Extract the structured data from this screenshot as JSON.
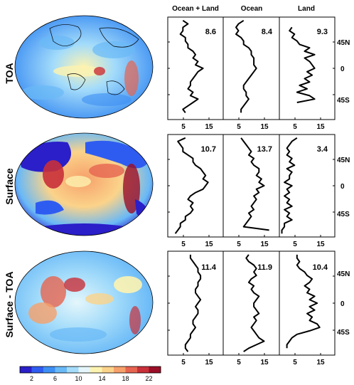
{
  "chart_data": {
    "type": "line",
    "columns": [
      "Ocean + Land",
      "Ocean",
      "Land"
    ],
    "rows": [
      "TOA",
      "Surface",
      "Surface - TOA"
    ],
    "x_ticks": [
      "5",
      "15"
    ],
    "xlim": [
      0,
      22
    ],
    "y_ticks": [
      "45N",
      "0",
      "45S"
    ],
    "ylim": [
      -75,
      75
    ],
    "colorbar": {
      "ticks": [
        "2",
        "6",
        "10",
        "14",
        "18",
        "22"
      ],
      "range": [
        0,
        24
      ],
      "colors": [
        "#2a1fc9",
        "#2f5cf0",
        "#3d8ff3",
        "#69b9f7",
        "#a4dcfa",
        "#e4f6fb",
        "#fdf3b0",
        "#fbd38a",
        "#f6a06a",
        "#e66450",
        "#c8303a",
        "#9b0e27"
      ]
    },
    "panels": [
      {
        "row": "TOA",
        "column": "Ocean + Land",
        "mean_label": "8.6",
        "lat": [
          70,
          65,
          60,
          55,
          50,
          45,
          40,
          35,
          30,
          25,
          20,
          15,
          10,
          5,
          0,
          -5,
          -10,
          -15,
          -20,
          -25,
          -30,
          -35,
          -40,
          -45,
          -50,
          -55,
          -60,
          -65
        ],
        "values": [
          6,
          8,
          6,
          6,
          5,
          7,
          7,
          8,
          8,
          10,
          11,
          10,
          12,
          11,
          14,
          12,
          11,
          10,
          9,
          9,
          8,
          10,
          9,
          12,
          10,
          8,
          6,
          7
        ]
      },
      {
        "row": "TOA",
        "column": "Ocean",
        "mean_label": "8.4",
        "lat": [
          70,
          65,
          60,
          55,
          50,
          45,
          40,
          35,
          30,
          25,
          20,
          15,
          10,
          5,
          0,
          -5,
          -10,
          -15,
          -20,
          -25,
          -30,
          -35,
          -40,
          -45,
          -50,
          -55,
          -60,
          -65
        ],
        "values": [
          8,
          6,
          5,
          6,
          5,
          7,
          8,
          8,
          10,
          11,
          11,
          12,
          12,
          12,
          13,
          12,
          11,
          10,
          9,
          8,
          8,
          9,
          9,
          10,
          9,
          8,
          7,
          7
        ]
      },
      {
        "row": "TOA",
        "column": "Land",
        "mean_label": "9.3",
        "lat": [
          60,
          55,
          50,
          45,
          40,
          35,
          30,
          25,
          20,
          15,
          10,
          5,
          0,
          -5,
          -10,
          -15,
          -20,
          -25,
          -30,
          -35,
          -40,
          -45,
          -50
        ],
        "values": [
          5,
          4,
          6,
          5,
          7,
          8,
          12,
          10,
          14,
          10,
          12,
          13,
          14,
          11,
          13,
          10,
          12,
          8,
          11,
          7,
          12,
          14,
          7
        ]
      },
      {
        "row": "Surface",
        "column": "Ocean + Land",
        "mean_label": "10.7",
        "lat": [
          70,
          65,
          60,
          55,
          50,
          45,
          40,
          35,
          30,
          25,
          20,
          15,
          10,
          5,
          0,
          -5,
          -10,
          -15,
          -20,
          -25,
          -30,
          -35,
          -40,
          -45,
          -50,
          -55,
          -60,
          -65,
          -70
        ],
        "values": [
          7,
          4,
          5,
          6,
          6,
          8,
          10,
          10,
          11,
          13,
          14,
          15,
          14,
          16,
          15,
          14,
          11,
          9,
          8,
          10,
          9,
          10,
          9,
          7,
          7,
          5,
          5,
          4,
          3
        ]
      },
      {
        "row": "Surface",
        "column": "Ocean",
        "mean_label": "13.7",
        "lat": [
          70,
          65,
          60,
          55,
          50,
          45,
          40,
          35,
          30,
          25,
          20,
          15,
          10,
          5,
          0,
          -5,
          -10,
          -15,
          -20,
          -25,
          -30,
          -35,
          -40,
          -45,
          -50,
          -55,
          -60,
          -62,
          -65
        ],
        "values": [
          7,
          8,
          9,
          10,
          11,
          10,
          12,
          11,
          12,
          14,
          14,
          13,
          15,
          14,
          16,
          13,
          14,
          12,
          13,
          12,
          11,
          12,
          10,
          11,
          10,
          9,
          8,
          12,
          18
        ]
      },
      {
        "row": "Surface",
        "column": "Land",
        "mean_label": "3.4",
        "lat": [
          70,
          65,
          60,
          55,
          50,
          45,
          40,
          35,
          30,
          25,
          20,
          15,
          10,
          5,
          0,
          -5,
          -10,
          -15,
          -20,
          -25,
          -30,
          -35,
          -40,
          -45,
          -50,
          -55,
          -60,
          -65,
          -70
        ],
        "values": [
          7,
          5,
          4,
          3,
          4,
          3,
          5,
          4,
          6,
          3,
          5,
          4,
          4,
          2,
          5,
          3,
          4,
          2,
          4,
          3,
          5,
          2,
          4,
          3,
          5,
          2,
          2,
          1,
          1
        ]
      },
      {
        "row": "Surface - TOA",
        "column": "Ocean + Land",
        "mean_label": "11.4",
        "lat": [
          70,
          65,
          60,
          55,
          50,
          45,
          40,
          35,
          30,
          25,
          20,
          15,
          10,
          5,
          0,
          -5,
          -10,
          -15,
          -20,
          -25,
          -30,
          -35,
          -40,
          -45,
          -50,
          -55,
          -60,
          -65,
          -70
        ],
        "values": [
          9,
          9,
          10,
          11,
          12,
          12,
          13,
          13,
          12,
          12,
          11,
          11,
          12,
          13,
          12,
          11,
          12,
          12,
          11,
          10,
          10,
          11,
          10,
          9,
          9,
          8,
          7,
          7,
          8
        ]
      },
      {
        "row": "Surface - TOA",
        "column": "Ocean",
        "mean_label": "11.9",
        "lat": [
          70,
          65,
          60,
          55,
          50,
          45,
          40,
          35,
          30,
          25,
          20,
          15,
          10,
          5,
          0,
          -5,
          -10,
          -15,
          -20,
          -25,
          -30,
          -35,
          -40,
          -45,
          -50,
          -55,
          -60,
          -65,
          -70
        ],
        "values": [
          10,
          9,
          10,
          12,
          13,
          12,
          13,
          11,
          10,
          12,
          11,
          12,
          14,
          13,
          12,
          12,
          13,
          14,
          12,
          13,
          12,
          11,
          12,
          13,
          14,
          16,
          13,
          10,
          8
        ]
      },
      {
        "row": "Surface - TOA",
        "column": "Land",
        "mean_label": "10.4",
        "lat": [
          70,
          65,
          60,
          55,
          50,
          45,
          40,
          35,
          30,
          25,
          20,
          15,
          10,
          5,
          0,
          -5,
          -10,
          -15,
          -20,
          -25,
          -30,
          -35,
          -40,
          -45,
          -50,
          -55,
          -60,
          -65
        ],
        "values": [
          7,
          7,
          8,
          7,
          8,
          10,
          11,
          13,
          12,
          10,
          12,
          11,
          14,
          12,
          15,
          12,
          14,
          11,
          13,
          12,
          15,
          16,
          12,
          7,
          5,
          4,
          3,
          3
        ]
      }
    ]
  }
}
